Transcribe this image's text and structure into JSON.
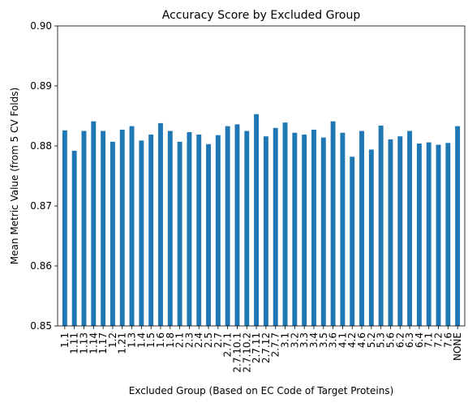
{
  "chart_data": {
    "type": "bar",
    "title": "Accuracy Score by Excluded Group",
    "xlabel": "Excluded Group (Based on EC Code of Target Proteins)",
    "ylabel": "Mean Metric Value (from 5 CV Folds)",
    "ylim": [
      0.85,
      0.9
    ],
    "yticks": [
      "0.85",
      "0.86",
      "0.87",
      "0.88",
      "0.89",
      "0.90"
    ],
    "grid": false,
    "legend": "none",
    "bar_color": "#1f77b4",
    "categories": [
      "1.1",
      "1.11",
      "1.13",
      "1.14",
      "1.17",
      "1.2",
      "1.21",
      "1.3",
      "1.4",
      "1.5",
      "1.6",
      "1.8",
      "2.1",
      "2.3",
      "2.4",
      "2.5",
      "2.7",
      "2.7.1",
      "2.7.10.1",
      "2.7.10.2",
      "2.7.11",
      "2.7.12",
      "2.7.7",
      "3.1",
      "3.2",
      "3.3",
      "3.4",
      "3.5",
      "3.6",
      "4.1",
      "4.2",
      "4.6",
      "5.2",
      "5.3",
      "5.6",
      "6.2",
      "6.3",
      "6.4",
      "7.1",
      "7.2",
      "7.6",
      "NONE"
    ],
    "values": [
      0.8826,
      0.8792,
      0.8825,
      0.8841,
      0.8825,
      0.8807,
      0.8827,
      0.8833,
      0.8809,
      0.8819,
      0.8838,
      0.8825,
      0.8807,
      0.8823,
      0.8819,
      0.8803,
      0.8818,
      0.8833,
      0.8836,
      0.8825,
      0.8853,
      0.8816,
      0.883,
      0.8839,
      0.8822,
      0.8819,
      0.8827,
      0.8814,
      0.8841,
      0.8822,
      0.8782,
      0.8825,
      0.8794,
      0.8834,
      0.8811,
      0.8816,
      0.8825,
      0.8804,
      0.8806,
      0.8802,
      0.8805,
      0.8833
    ]
  }
}
